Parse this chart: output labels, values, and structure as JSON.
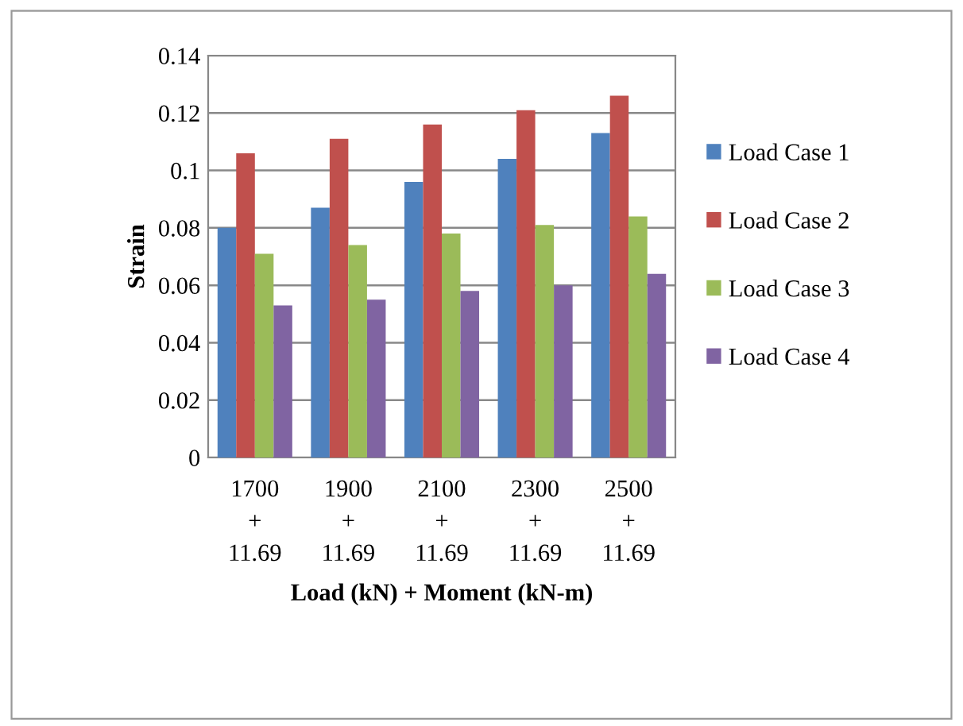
{
  "chart_data": {
    "type": "bar",
    "xlabel": "Load (kN) + Moment (kN-m)",
    "ylabel": "Strain",
    "categories": [
      "1700\n+\n11.69",
      "1900\n+\n11.69",
      "2100\n+\n11.69",
      "2300\n+\n11.69",
      "2500\n+\n11.69"
    ],
    "series": [
      {
        "name": "Load Case 1",
        "color": "#4f81bd",
        "values": [
          0.08,
          0.087,
          0.096,
          0.104,
          0.113
        ]
      },
      {
        "name": "Load Case 2",
        "color": "#c0504d",
        "values": [
          0.106,
          0.111,
          0.116,
          0.121,
          0.126
        ]
      },
      {
        "name": "Load Case 3",
        "color": "#9bbb59",
        "values": [
          0.071,
          0.074,
          0.078,
          0.081,
          0.084
        ]
      },
      {
        "name": "Load Case 4",
        "color": "#8064a2",
        "values": [
          0.053,
          0.055,
          0.058,
          0.06,
          0.064
        ]
      }
    ],
    "ylim": [
      0,
      0.14
    ],
    "yticks": [
      0,
      0.02,
      0.04,
      0.06,
      0.08,
      0.1,
      0.12,
      0.14
    ],
    "grid": "y",
    "legend": "right"
  }
}
